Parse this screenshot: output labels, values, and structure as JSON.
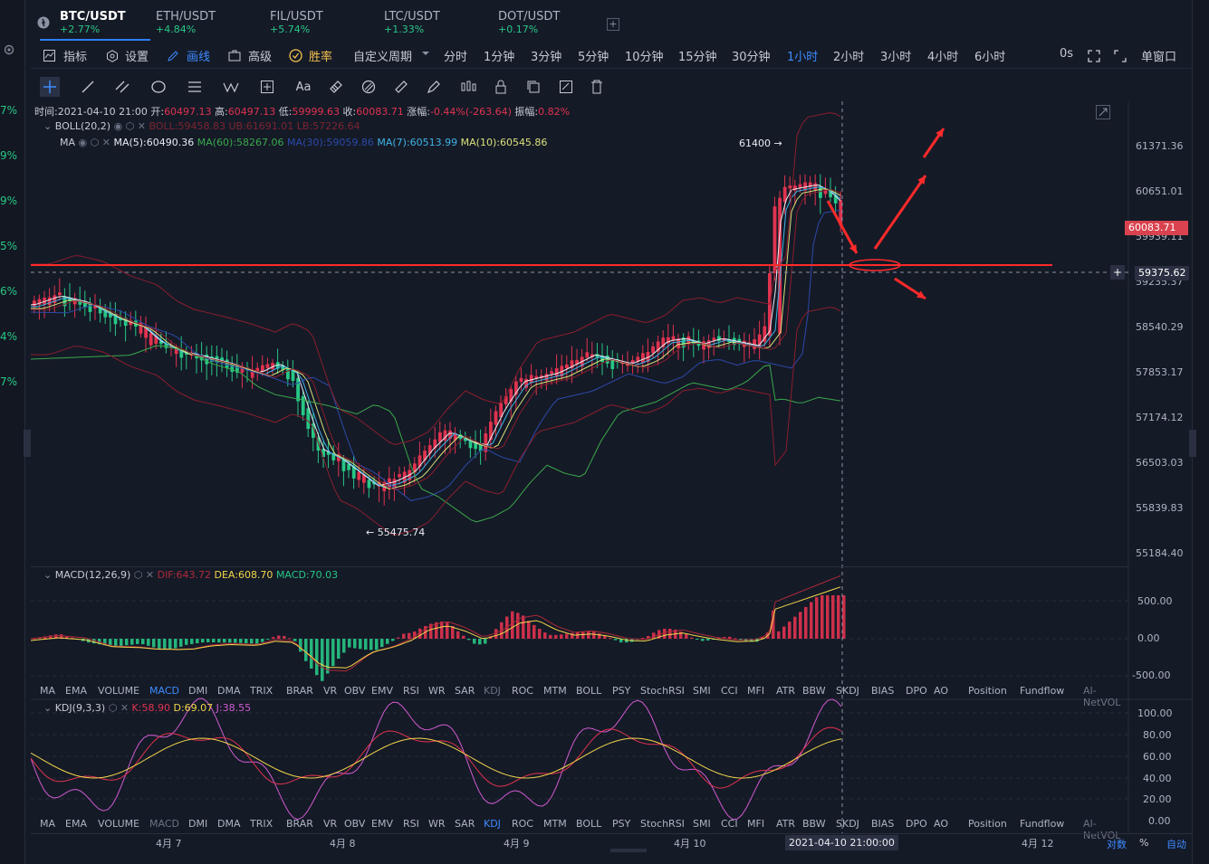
{
  "left_strip": [
    "7%",
    "9%",
    "9%",
    "5%",
    "6%",
    "4%",
    "7%"
  ],
  "tabs": [
    {
      "name": "BTC/USDT",
      "change": "+2.77%"
    },
    {
      "name": "ETH/USDT",
      "change": "+4.84%"
    },
    {
      "name": "FIL/USDT",
      "change": "+5.74%"
    },
    {
      "name": "LTC/USDT",
      "change": "+1.33%"
    },
    {
      "name": "DOT/USDT",
      "change": "+0.17%"
    }
  ],
  "add_tab": "+",
  "toolbar": {
    "indicators": "指标",
    "settings": "设置",
    "draw": "画线",
    "advanced": "高级",
    "winrate": "胜率",
    "custom_period": "自定义周期",
    "periods": [
      "分时",
      "1分钟",
      "3分钟",
      "5分钟",
      "10分钟",
      "15分钟",
      "30分钟",
      "1小时",
      "2小时",
      "3小时",
      "4小时",
      "6小时"
    ],
    "active_period": "1小时",
    "countdown": "0s",
    "window": "单窗口"
  },
  "draw_tools": [
    "crosshair-icon",
    "line-icon",
    "parallel-icon",
    "circle-icon",
    "hlines-icon",
    "wave-icon",
    "box-plus-icon",
    "text-icon",
    "fib-icon",
    "magnet-icon",
    "ruler-icon",
    "pen-icon",
    "candles-icon",
    "lock-icon",
    "copy-icon",
    "edit-icon",
    "trash-icon"
  ],
  "text_tool_label": "Aa",
  "ohlc": {
    "time_label": "时间:",
    "time": "2021-04-10 21:00",
    "open_label": "开:",
    "open": "60497.13",
    "high_label": "高:",
    "high": "60497.13",
    "low_label": "低:",
    "low": "59999.63",
    "close_label": "收:",
    "close": "60083.71",
    "change_label": "涨幅:",
    "change": "-0.44%(-263.64)",
    "amp_label": "振幅:",
    "amp": "0.82%"
  },
  "boll": {
    "name": "BOLL(20,2)",
    "boll": "BOLL:59458.83",
    "ub": "UB:61691.01",
    "lb": "LB:57226.64"
  },
  "ma": {
    "name": "MA",
    "ma5": "MA(5):60490.36",
    "ma60": "MA(60):58267.06",
    "ma30": "MA(30):59059.86",
    "ma7": "MA(7):60513.99",
    "ma10": "MA(10):60545.86"
  },
  "price_axis": [
    "61371.36",
    "60651.01",
    "59939.11",
    "59235.37",
    "58540.29",
    "57853.17",
    "57174.12",
    "56503.03",
    "55839.83",
    "55184.40"
  ],
  "current_price": "60083.71",
  "cursor_price": "59375.62",
  "cursor_plus": "+",
  "high_mark": "61400 →",
  "low_mark": "← 55475.74",
  "macd": {
    "name": "MACD(12,26,9)",
    "dif": "DIF:643.72",
    "dea": "DEA:608.70",
    "macd": "MACD:70.03",
    "axis": [
      "500.00",
      "0.00",
      "-500.00"
    ]
  },
  "kdj": {
    "name": "KDJ(9,3,3)",
    "k": "K:58.90",
    "d": "D:69.07",
    "j": "J:38.55",
    "axis": [
      "100.00",
      "80.00",
      "60.00",
      "40.00",
      "20.00",
      "0.00"
    ]
  },
  "indicator_list": [
    "MA",
    "EMA",
    "VOLUME",
    "MACD",
    "DMI",
    "DMA",
    "TRIX",
    "BRAR",
    "VR",
    "OBV",
    "EMV",
    "RSI",
    "WR",
    "SAR",
    "KDJ",
    "ROC",
    "MTM",
    "BOLL",
    "PSY",
    "StochRSI",
    "SMI",
    "CCI",
    "MFI",
    "ATR",
    "BBW",
    "SKDJ",
    "BIAS",
    "DPO",
    "AO",
    "Position",
    "Fundflow",
    "AI-NetVOL"
  ],
  "date_axis": [
    "4月 7",
    "4月 8",
    "4月 9",
    "4月 10",
    "4月 12"
  ],
  "cursor_time": "2021-04-10 21:00:00",
  "bottom_right": {
    "log": "对数",
    "pct": "%",
    "auto": "自动"
  },
  "colors": {
    "up": "#e0334f",
    "down": "#27c785",
    "accent": "#3d8cff",
    "bg": "#151a27",
    "annotation": "#ff2a2a"
  }
}
